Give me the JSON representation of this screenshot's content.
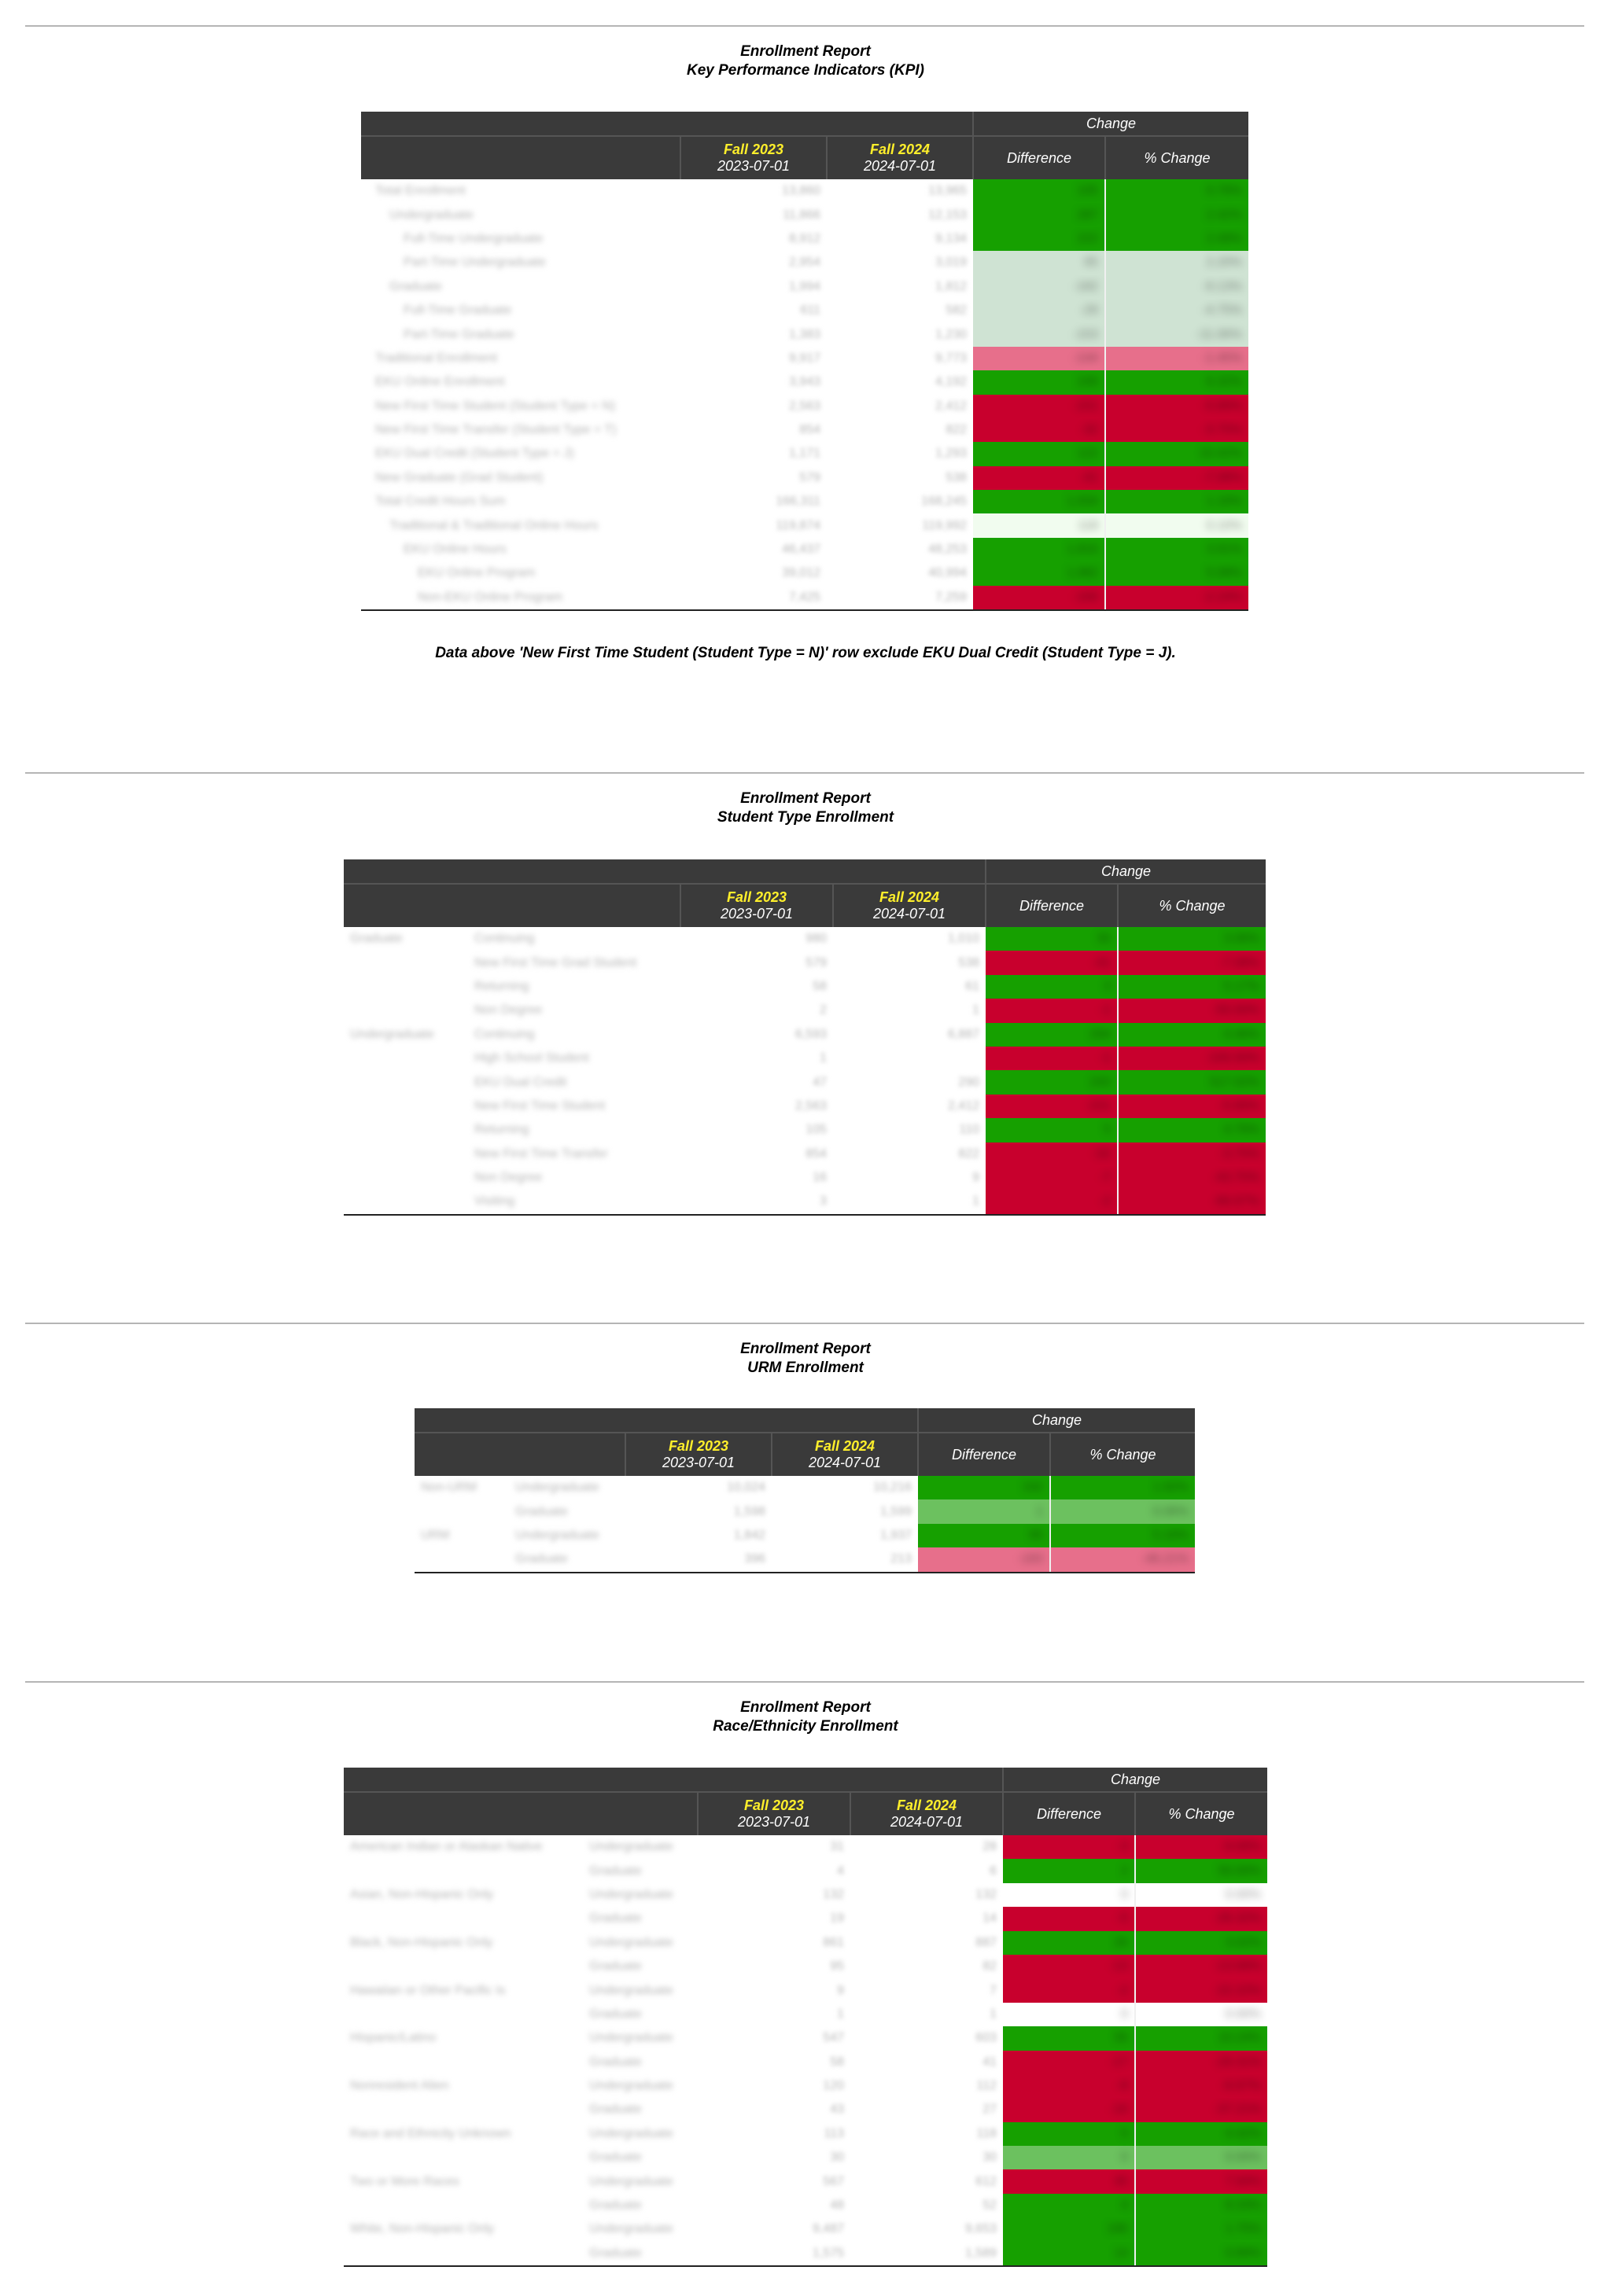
{
  "report_title": "Enrollment Report",
  "header": {
    "change": "Change",
    "difference": "Difference",
    "pct_change": "% Change",
    "term1": "Fall 2023",
    "date1": "2023-07-01",
    "term2": "Fall 2024",
    "date2": "2024-07-01"
  },
  "sections": [
    {
      "subtitle": "Key Performance Indicators (KPI)",
      "note": "Data above 'New First Time Student (Student Type = N)' row exclude EKU Dual Credit (Student Type = J).",
      "rows": [
        {
          "label": "Total Enrollment",
          "a": "13,860",
          "b": "13,965",
          "diff": "105",
          "pct": "0.76%",
          "color": "green"
        },
        {
          "label": "Undergraduate",
          "a": "11,866",
          "b": "12,153",
          "diff": "287",
          "pct": "2.42%",
          "color": "green"
        },
        {
          "label": "Full-Time Undergraduate",
          "a": "8,912",
          "b": "9,134",
          "diff": "222",
          "pct": "2.49%",
          "color": "green"
        },
        {
          "label": "Part-Time Undergraduate",
          "a": "2,954",
          "b": "3,019",
          "diff": "65",
          "pct": "2.20%",
          "color": "pale-green"
        },
        {
          "label": "Graduate",
          "a": "1,994",
          "b": "1,812",
          "diff": "-182",
          "pct": "-9.13%",
          "color": "pale-green"
        },
        {
          "label": "Full-Time Graduate",
          "a": "611",
          "b": "582",
          "diff": "-29",
          "pct": "-4.75%",
          "color": "pale-green"
        },
        {
          "label": "Part-Time Graduate",
          "a": "1,383",
          "b": "1,230",
          "diff": "-153",
          "pct": "-11.06%",
          "color": "pale-green"
        },
        {
          "label": "Traditional Enrollment",
          "a": "9,917",
          "b": "9,773",
          "diff": "-144",
          "pct": "-1.45%",
          "color": "pale-red"
        },
        {
          "label": "EKU Online Enrollment",
          "a": "3,943",
          "b": "4,192",
          "diff": "249",
          "pct": "6.32%",
          "color": "green"
        },
        {
          "label": "New First Time Student (Student Type = N)",
          "a": "2,563",
          "b": "2,412",
          "diff": "-151",
          "pct": "-5.89%",
          "color": "red"
        },
        {
          "label": "New First Time Transfer (Student Type = T)",
          "a": "854",
          "b": "822",
          "diff": "-32",
          "pct": "-3.75%",
          "color": "red"
        },
        {
          "label": "EKU Dual Credit (Student Type = J)",
          "a": "1,171",
          "b": "1,293",
          "diff": "122",
          "pct": "10.42%",
          "color": "green"
        },
        {
          "label": "New Graduate (Grad Student)",
          "a": "579",
          "b": "538",
          "diff": "-41",
          "pct": "-7.08%",
          "color": "red"
        },
        {
          "label": "Total Credit Hours Sum",
          "a": "166,311",
          "b": "168,245",
          "diff": "1,934",
          "pct": "1.16%",
          "color": "green"
        },
        {
          "label": "Traditional & Traditional Online Hours",
          "a": "119,874",
          "b": "119,992",
          "diff": "118",
          "pct": "0.10%",
          "color": "white-green"
        },
        {
          "label": "EKU Online Hours",
          "a": "46,437",
          "b": "48,253",
          "diff": "1,816",
          "pct": "3.91%",
          "color": "green"
        },
        {
          "label": "EKU Online Program",
          "a": "39,012",
          "b": "40,994",
          "diff": "1,982",
          "pct": "5.08%",
          "color": "green"
        },
        {
          "label": "Non-EKU Online Program",
          "a": "7,425",
          "b": "7,259",
          "diff": "-166",
          "pct": "-2.24%",
          "color": "red"
        }
      ]
    },
    {
      "subtitle": "Student Type Enrollment",
      "rows": [
        {
          "group": "Graduate",
          "label": "Continuing",
          "a": "980",
          "b": "1,010",
          "diff": "30",
          "pct": "3.06%",
          "color": "green"
        },
        {
          "group": "",
          "label": "New First Time Grad Student",
          "a": "579",
          "b": "538",
          "diff": "-41",
          "pct": "-7.08%",
          "color": "red"
        },
        {
          "group": "",
          "label": "Returning",
          "a": "58",
          "b": "61",
          "diff": "3",
          "pct": "5.17%",
          "color": "green"
        },
        {
          "group": "",
          "label": "Non Degree",
          "a": "2",
          "b": "1",
          "diff": "-1",
          "pct": "-50.00%",
          "color": "red"
        },
        {
          "group": "Undergraduate",
          "label": "Continuing",
          "a": "6,593",
          "b": "6,887",
          "diff": "294",
          "pct": "4.46%",
          "color": "green"
        },
        {
          "group": "",
          "label": "High School Student",
          "a": "1",
          "b": "",
          "diff": "-1",
          "pct": "-100.00%",
          "color": "red"
        },
        {
          "group": "",
          "label": "EKU Dual Credit",
          "a": "47",
          "b": "290",
          "diff": "243",
          "pct": "517.02%",
          "color": "green"
        },
        {
          "group": "",
          "label": "New First Time Student",
          "a": "2,563",
          "b": "2,412",
          "diff": "-151",
          "pct": "-5.89%",
          "color": "red"
        },
        {
          "group": "",
          "label": "Returning",
          "a": "105",
          "b": "110",
          "diff": "5",
          "pct": "4.76%",
          "color": "green"
        },
        {
          "group": "",
          "label": "New First Time Transfer",
          "a": "854",
          "b": "822",
          "diff": "-32",
          "pct": "-3.75%",
          "color": "red"
        },
        {
          "group": "",
          "label": "Non Degree",
          "a": "16",
          "b": "9",
          "diff": "-7",
          "pct": "-43.75%",
          "color": "red"
        },
        {
          "group": "",
          "label": "Visiting",
          "a": "3",
          "b": "1",
          "diff": "-2",
          "pct": "-66.67%",
          "color": "red"
        }
      ]
    },
    {
      "subtitle": "URM Enrollment",
      "rows": [
        {
          "group": "Non-URM",
          "label": "Undergraduate",
          "a": "10,024",
          "b": "10,216",
          "diff": "192",
          "pct": "1.92%",
          "color": "green"
        },
        {
          "group": "",
          "label": "Graduate",
          "a": "1,598",
          "b": "1,599",
          "diff": "1",
          "pct": "0.06%",
          "color": "mid-green"
        },
        {
          "group": "URM",
          "label": "Undergraduate",
          "a": "1,842",
          "b": "1,937",
          "diff": "95",
          "pct": "5.16%",
          "color": "green"
        },
        {
          "group": "",
          "label": "Graduate",
          "a": "396",
          "b": "213",
          "diff": "-183",
          "pct": "-46.21%",
          "color": "pale-red"
        }
      ]
    },
    {
      "subtitle": "Race/Ethnicity Enrollment",
      "rows": [
        {
          "group": "American Indian or Alaskan Native",
          "label": "Undergraduate",
          "a": "31",
          "b": "28",
          "diff": "-3",
          "pct": "-9.68%",
          "color": "red"
        },
        {
          "group": "",
          "label": "Graduate",
          "a": "4",
          "b": "6",
          "diff": "2",
          "pct": "50.00%",
          "color": "green"
        },
        {
          "group": "Asian, Non-Hispanic Only",
          "label": "Undergraduate",
          "a": "132",
          "b": "132",
          "diff": "0",
          "pct": "0.00%",
          "color": "none"
        },
        {
          "group": "",
          "label": "Graduate",
          "a": "19",
          "b": "14",
          "diff": "-5",
          "pct": "-26.32%",
          "color": "red"
        },
        {
          "group": "Black, Non-Hispanic Only",
          "label": "Undergraduate",
          "a": "861",
          "b": "887",
          "diff": "26",
          "pct": "3.02%",
          "color": "green"
        },
        {
          "group": "",
          "label": "Graduate",
          "a": "95",
          "b": "82",
          "diff": "-13",
          "pct": "-13.68%",
          "color": "red"
        },
        {
          "group": "Hawaiian or Other Pacific Is",
          "label": "Undergraduate",
          "a": "9",
          "b": "7",
          "diff": "-2",
          "pct": "-22.22%",
          "color": "red"
        },
        {
          "group": "",
          "label": "Graduate",
          "a": "1",
          "b": "1",
          "diff": "0",
          "pct": "0.00%",
          "color": "none"
        },
        {
          "group": "Hispanic/Latino",
          "label": "Undergraduate",
          "a": "547",
          "b": "603",
          "diff": "56",
          "pct": "10.24%",
          "color": "green"
        },
        {
          "group": "",
          "label": "Graduate",
          "a": "58",
          "b": "41",
          "diff": "-17",
          "pct": "-29.31%",
          "color": "red"
        },
        {
          "group": "Nonresident Alien",
          "label": "Undergraduate",
          "a": "120",
          "b": "112",
          "diff": "-8",
          "pct": "-6.67%",
          "color": "red"
        },
        {
          "group": "",
          "label": "Graduate",
          "a": "43",
          "b": "27",
          "diff": "-16",
          "pct": "-37.21%",
          "color": "red"
        },
        {
          "group": "Race and Ethnicity Unknown",
          "label": "Undergraduate",
          "a": "113",
          "b": "118",
          "diff": "5",
          "pct": "4.42%",
          "color": "green"
        },
        {
          "group": "",
          "label": "Graduate",
          "a": "30",
          "b": "30",
          "diff": "0",
          "pct": "0.00%",
          "color": "mid-green"
        },
        {
          "group": "Two or More Races",
          "label": "Undergraduate",
          "a": "567",
          "b": "612",
          "diff": "45",
          "pct": "7.94%",
          "color": "red"
        },
        {
          "group": "",
          "label": "Graduate",
          "a": "48",
          "b": "52",
          "diff": "4",
          "pct": "8.33%",
          "color": "green"
        },
        {
          "group": "White, Non-Hispanic Only",
          "label": "Undergraduate",
          "a": "9,487",
          "b": "9,653",
          "diff": "166",
          "pct": "1.75%",
          "color": "green"
        },
        {
          "group": "",
          "label": "Graduate",
          "a": "1,575",
          "b": "1,589",
          "diff": "14",
          "pct": "0.89%",
          "color": "green"
        }
      ]
    }
  ]
}
